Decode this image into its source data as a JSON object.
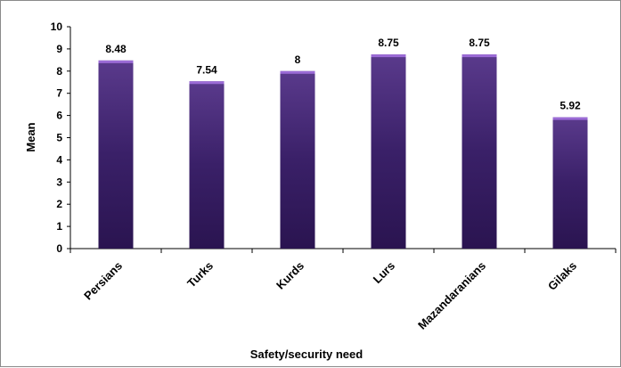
{
  "chart_data": {
    "type": "bar",
    "categories": [
      "Persians",
      "Turks",
      "Kurds",
      "Lurs",
      "Mazandaranians",
      "Gilaks"
    ],
    "values": [
      8.48,
      7.54,
      8,
      8.75,
      8.75,
      5.92
    ],
    "data_labels": [
      "8.48",
      "7.54",
      "8",
      "8.75",
      "8.75",
      "5.92"
    ],
    "title": "",
    "xlabel": "Safety/security need",
    "ylabel": "Mean",
    "ylim": [
      0,
      10
    ],
    "yticks": [
      "0",
      "1",
      "2",
      "3",
      "4",
      "5",
      "6",
      "7",
      "8",
      "9",
      "10"
    ],
    "grid": false,
    "legend": "none",
    "bar_color": "#3b2066",
    "bar_top_color": "#9b6bd6"
  }
}
